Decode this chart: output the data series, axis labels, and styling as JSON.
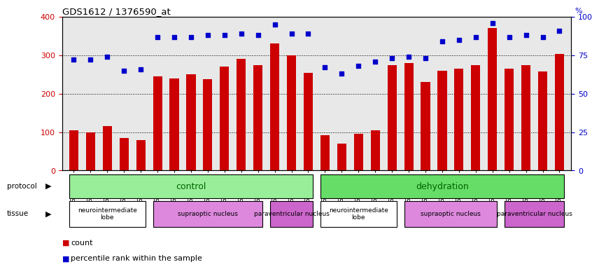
{
  "title": "GDS1612 / 1376590_at",
  "samples": [
    "GSM69787",
    "GSM69788",
    "GSM69789",
    "GSM69790",
    "GSM69791",
    "GSM69461",
    "GSM69462",
    "GSM69463",
    "GSM69464",
    "GSM69465",
    "GSM69475",
    "GSM69476",
    "GSM69477",
    "GSM69478",
    "GSM69479",
    "GSM69782",
    "GSM69783",
    "GSM69784",
    "GSM69785",
    "GSM69786",
    "GSM69268",
    "GSM69457",
    "GSM69458",
    "GSM69459",
    "GSM69460",
    "GSM69470",
    "GSM69471",
    "GSM69472",
    "GSM69473",
    "GSM69474"
  ],
  "counts": [
    105,
    100,
    115,
    85,
    80,
    245,
    240,
    250,
    238,
    270,
    290,
    275,
    330,
    300,
    255,
    92,
    70,
    95,
    105,
    275,
    280,
    230,
    260,
    265,
    275,
    370,
    265,
    275,
    258,
    303
  ],
  "percentiles": [
    72,
    72,
    74,
    65,
    66,
    87,
    87,
    87,
    88,
    88,
    89,
    88,
    95,
    89,
    89,
    67,
    63,
    68,
    71,
    73,
    74,
    73,
    84,
    85,
    87,
    96,
    87,
    88,
    87,
    91
  ],
  "bar_color": "#cc0000",
  "dot_color": "#0000cc",
  "ylim_left": [
    0,
    400
  ],
  "ylim_right": [
    0,
    100
  ],
  "yticks_left": [
    0,
    100,
    200,
    300,
    400
  ],
  "yticks_right": [
    0,
    25,
    50,
    75,
    100
  ],
  "grid_values": [
    100,
    200,
    300
  ],
  "protocol_groups": [
    {
      "label": "control",
      "start": 0,
      "end": 14,
      "color": "#99ee99"
    },
    {
      "label": "dehydration",
      "start": 15,
      "end": 29,
      "color": "#66dd66"
    }
  ],
  "tissue_groups": [
    {
      "label": "neurointermediate\nlobe",
      "start": 0,
      "end": 4,
      "color": "#ffffff"
    },
    {
      "label": "supraoptic nucleus",
      "start": 5,
      "end": 11,
      "color": "#dd88dd"
    },
    {
      "label": "paraventricular nucleus",
      "start": 12,
      "end": 14,
      "color": "#cc66cc"
    },
    {
      "label": "neurointermediate\nlobe",
      "start": 15,
      "end": 19,
      "color": "#ffffff"
    },
    {
      "label": "supraoptic nucleus",
      "start": 20,
      "end": 25,
      "color": "#dd88dd"
    },
    {
      "label": "paraventricular nucleus",
      "start": 26,
      "end": 29,
      "color": "#cc66cc"
    }
  ],
  "plot_bg": "#e8e8e8",
  "bar_width": 0.55
}
